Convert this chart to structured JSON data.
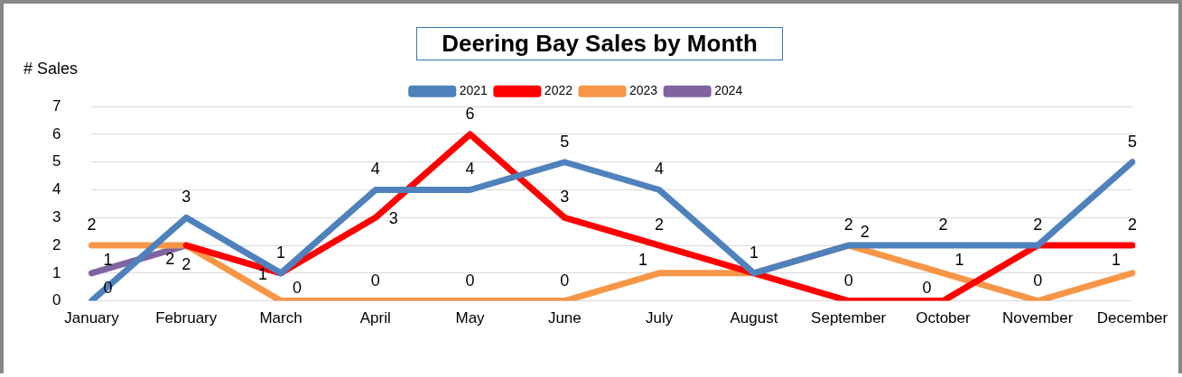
{
  "chart_data": {
    "type": "line",
    "title": "Deering Bay Sales by Month",
    "ylabel": "# Sales",
    "categories": [
      "January",
      "February",
      "March",
      "April",
      "May",
      "June",
      "July",
      "August",
      "September",
      "October",
      "November",
      "December"
    ],
    "series": [
      {
        "name": "2021",
        "color": "#4f81bd",
        "values": [
          0,
          3,
          1,
          4,
          4,
          5,
          4,
          1,
          2,
          2,
          2,
          5
        ],
        "value_labels": [
          "0",
          "3",
          "1",
          "4",
          "4",
          "5",
          "4",
          "1",
          "2",
          "2",
          "2",
          "5"
        ]
      },
      {
        "name": "2022",
        "color": "#ff0000",
        "values": [
          null,
          2,
          1,
          3,
          6,
          3,
          2,
          1,
          0,
          0,
          2,
          2
        ],
        "value_labels": [
          null,
          null,
          null,
          "3",
          "6",
          "3",
          "2",
          null,
          "0",
          "0",
          null,
          "2"
        ]
      },
      {
        "name": "2023",
        "color": "#f79646",
        "values": [
          2,
          2,
          0,
          0,
          0,
          0,
          1,
          1,
          2,
          1,
          0,
          1
        ],
        "value_labels": [
          "2",
          "2",
          "0",
          "0",
          "0",
          "0",
          "1",
          null,
          "2",
          "1",
          "0",
          "1"
        ]
      },
      {
        "name": "2024",
        "color": "#8064a2",
        "values": [
          1,
          2,
          1,
          null,
          null,
          null,
          null,
          null,
          null,
          null,
          null,
          null
        ],
        "value_labels": [
          "1",
          "2",
          "1",
          null,
          null,
          null,
          null,
          null,
          null,
          null,
          null,
          null
        ]
      }
    ],
    "ylim": [
      0,
      7
    ],
    "yticks": [
      0,
      1,
      2,
      3,
      4,
      5,
      6,
      7
    ],
    "grid": "y",
    "legend": "top",
    "marker": "none",
    "line_style": "solid"
  }
}
